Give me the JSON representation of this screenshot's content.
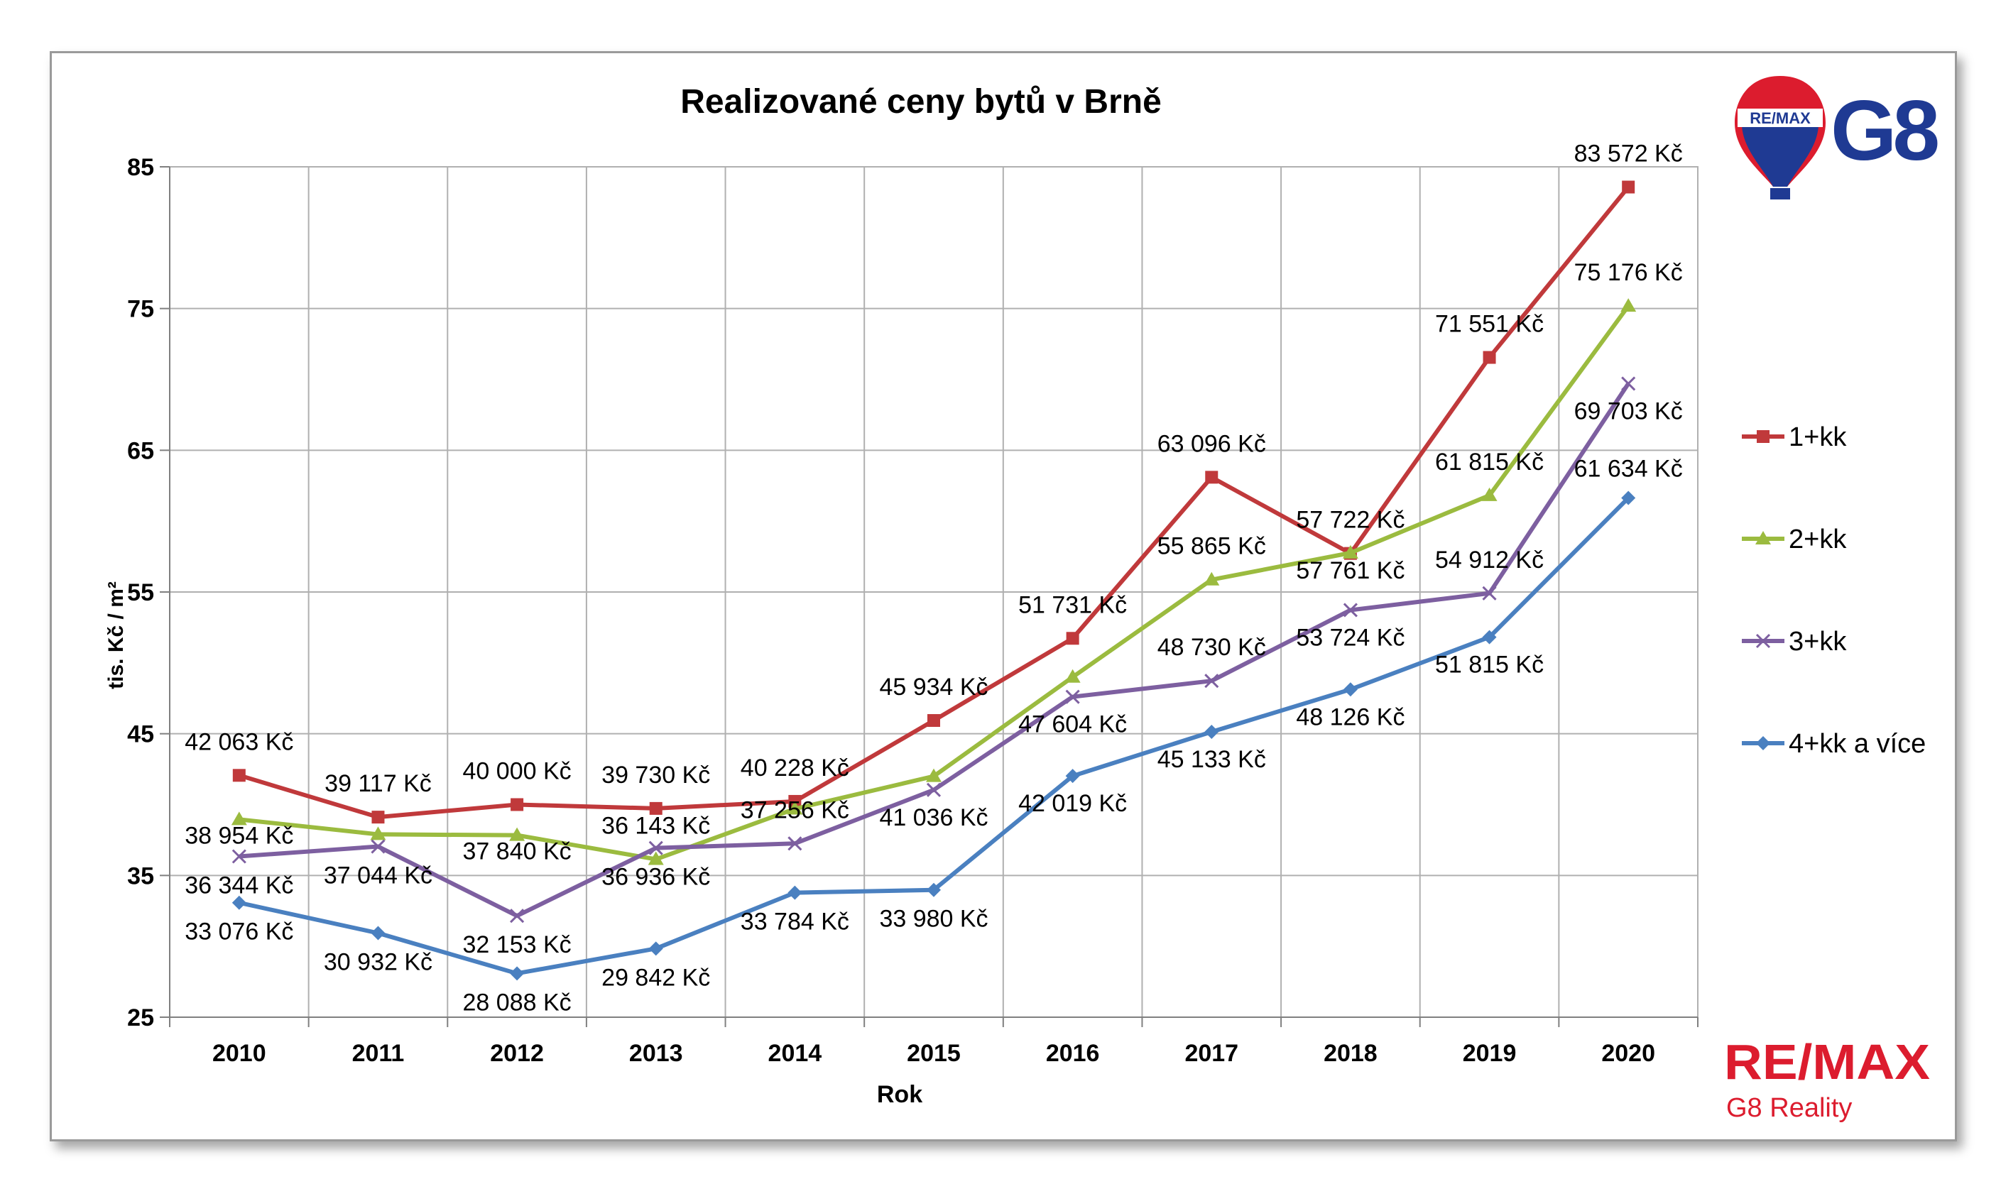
{
  "logos": {
    "top_balloon_text": "RE/MAX",
    "top_g8": "G8",
    "bottom_remax": "RE/MAX",
    "bottom_subtitle": "G8 Reality"
  },
  "colors": {
    "1+kk": "#c0393b",
    "2+kk": "#9bbb3f",
    "3+kk": "#7d5fa0",
    "4+kk a více": "#4a80c0",
    "remax_red": "#dc1c2e",
    "remax_blue": "#1f3a93"
  },
  "chart_data": {
    "type": "line",
    "title": "Realizované ceny bytů v Brně",
    "xlabel": "Rok",
    "ylabel": "tis. Kč / m²",
    "ylim": [
      25,
      85
    ],
    "yticks": [
      25,
      35,
      45,
      55,
      65,
      75,
      85
    ],
    "grid": true,
    "legend_position": "right",
    "categories": [
      "2010",
      "2011",
      "2012",
      "2013",
      "2014",
      "2015",
      "2016",
      "2017",
      "2018",
      "2019",
      "2020"
    ],
    "series": [
      {
        "name": "1+kk",
        "marker": "square",
        "values": [
          42.063,
          39.117,
          40.0,
          39.73,
          40.228,
          45.934,
          51.731,
          63.096,
          57.722,
          71.551,
          83.572
        ],
        "labels": [
          "42 063 Kč",
          "39 117 Kč",
          "40 000 Kč",
          "39 730 Kč",
          "40 228 Kč",
          "45 934 Kč",
          "51 731 Kč",
          "63 096 Kč",
          "57 722 Kč",
          "71 551 Kč",
          "83 572 Kč"
        ]
      },
      {
        "name": "2+kk",
        "marker": "triangle",
        "values": [
          38.954,
          37.9,
          37.84,
          36.143,
          39.7,
          42.0,
          49.0,
          55.865,
          57.761,
          61.815,
          75.176
        ],
        "labels": [
          "38 954 Kč",
          null,
          "37 840 Kč",
          "36 143 Kč",
          null,
          null,
          null,
          "55 865 Kč",
          "57 761 Kč",
          "61 815 Kč",
          "75 176 Kč"
        ]
      },
      {
        "name": "3+kk",
        "marker": "x",
        "values": [
          36.344,
          37.044,
          32.153,
          36.936,
          37.256,
          41.036,
          47.604,
          48.73,
          53.724,
          54.912,
          69.703
        ],
        "labels": [
          "36 344 Kč",
          "37 044 Kč",
          "32 153 Kč",
          "36 936 Kč",
          "37 256 Kč",
          "41 036 Kč",
          "47 604 Kč",
          "48 730 Kč",
          "53 724 Kč",
          "54 912 Kč",
          "69 703 Kč"
        ]
      },
      {
        "name": "4+kk a více",
        "marker": "diamond",
        "values": [
          33.076,
          30.932,
          28.088,
          29.842,
          33.784,
          33.98,
          42.019,
          45.133,
          48.126,
          51.815,
          61.634
        ],
        "labels": [
          "33 076 Kč",
          "30 932 Kč",
          "28 088 Kč",
          "29 842 Kč",
          "33 784 Kč",
          "33 980 Kč",
          "42 019 Kč",
          "45 133 Kč",
          "48 126 Kč",
          "51 815 Kč",
          "61 634 Kč"
        ]
      }
    ]
  }
}
